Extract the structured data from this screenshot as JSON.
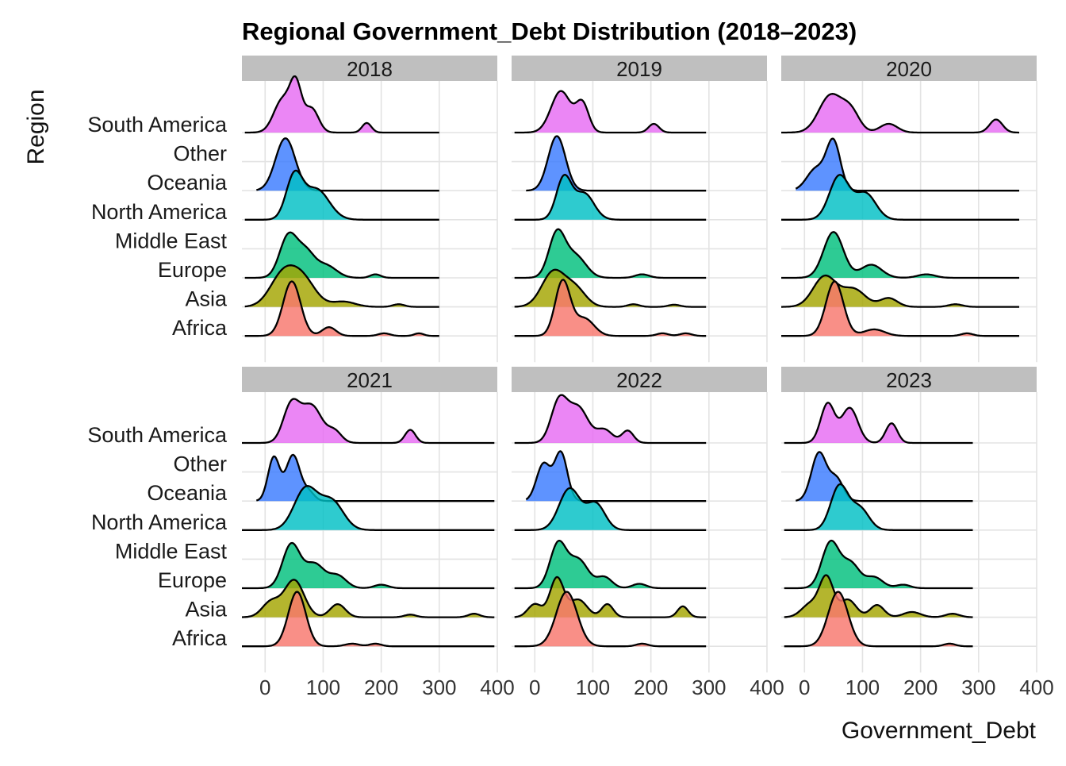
{
  "chart_data": {
    "type": "ridgeline",
    "title": "Regional Government_Debt Distribution (2018–2023)",
    "xlabel": "Government_Debt",
    "ylabel": "Region",
    "xlim": [
      -40,
      400
    ],
    "xticks": [
      0,
      100,
      200,
      300,
      400
    ],
    "grid": true,
    "legend": "none",
    "regions": [
      "South America",
      "Other",
      "Oceania",
      "North America",
      "Middle East",
      "Europe",
      "Asia",
      "Africa"
    ],
    "region_colors": {
      "Africa": "#F8766D",
      "Asia": "#A3A500",
      "Europe": "#00BF7D",
      "Middle East": "#00B0F6",
      "North America": "#00BFC4",
      "Oceania": "#3A7BFF",
      "Other": "#3A7BFF",
      "South America": "#E76BF3"
    },
    "facets": [
      {
        "year": "2018",
        "ridges": [
          {
            "region": "South America",
            "baseline": "South America",
            "range": [
              -35,
              300
            ],
            "peaks": [
              [
                30,
                0.75,
                15
              ],
              [
                53,
                1.0,
                10
              ],
              [
                80,
                0.55,
                12
              ],
              [
                175,
                0.22,
                8
              ]
            ]
          },
          {
            "region": "Other",
            "baseline": "Oceania",
            "range": [
              -15,
              300
            ],
            "peaks": [
              [
                35,
                1.2,
                17
              ]
            ]
          },
          {
            "region": "North America",
            "baseline": "North America",
            "range": [
              -35,
              300
            ],
            "peaks": [
              [
                50,
                0.95,
                14
              ],
              [
                88,
                0.7,
                22
              ]
            ]
          },
          {
            "region": "Europe",
            "baseline": "Europe",
            "range": [
              -35,
              300
            ],
            "peaks": [
              [
                40,
                0.95,
                15
              ],
              [
                70,
                0.55,
                15
              ],
              [
                105,
                0.28,
                18
              ],
              [
                190,
                0.08,
                9
              ]
            ]
          },
          {
            "region": "Asia",
            "baseline": "Asia",
            "range": [
              -35,
              300
            ],
            "peaks": [
              [
                30,
                0.7,
                22
              ],
              [
                65,
                0.6,
                22
              ],
              [
                135,
                0.12,
                20
              ],
              [
                230,
                0.06,
                10
              ]
            ]
          },
          {
            "region": "Africa",
            "baseline": "Africa",
            "range": [
              -35,
              300
            ],
            "peaks": [
              [
                46,
                1.25,
                15
              ],
              [
                110,
                0.2,
                12
              ],
              [
                205,
                0.06,
                10
              ],
              [
                265,
                0.06,
                8
              ]
            ]
          }
        ]
      },
      {
        "year": "2019",
        "ridges": [
          {
            "region": "South America",
            "baseline": "South America",
            "range": [
              -35,
              295
            ],
            "peaks": [
              [
                45,
                0.95,
                17
              ],
              [
                82,
                0.65,
                11
              ],
              [
                205,
                0.2,
                9
              ]
            ]
          },
          {
            "region": "Other",
            "baseline": "Oceania",
            "range": [
              -15,
              295
            ],
            "peaks": [
              [
                38,
                1.25,
                15
              ]
            ]
          },
          {
            "region": "North America",
            "baseline": "North America",
            "range": [
              -35,
              295
            ],
            "peaks": [
              [
                50,
                0.95,
                13
              ],
              [
                85,
                0.6,
                17
              ]
            ]
          },
          {
            "region": "Europe",
            "baseline": "Europe",
            "range": [
              -35,
              295
            ],
            "peaks": [
              [
                38,
                1.0,
                14
              ],
              [
                70,
                0.5,
                18
              ],
              [
                185,
                0.08,
                12
              ]
            ]
          },
          {
            "region": "Asia",
            "baseline": "Asia",
            "range": [
              -35,
              295
            ],
            "peaks": [
              [
                32,
                0.8,
                20
              ],
              [
                70,
                0.4,
                18
              ],
              [
                170,
                0.06,
                10
              ],
              [
                240,
                0.05,
                10
              ]
            ]
          },
          {
            "region": "Africa",
            "baseline": "Africa",
            "range": [
              -35,
              295
            ],
            "peaks": [
              [
                48,
                1.25,
                13
              ],
              [
                85,
                0.4,
                17
              ],
              [
                220,
                0.06,
                10
              ],
              [
                260,
                0.06,
                10
              ]
            ]
          }
        ]
      },
      {
        "year": "2020",
        "ridges": [
          {
            "region": "South America",
            "baseline": "South America",
            "range": [
              -40,
              370
            ],
            "peaks": [
              [
                45,
                0.85,
                20
              ],
              [
                80,
                0.45,
                15
              ],
              [
                145,
                0.2,
                15
              ],
              [
                330,
                0.3,
                11
              ]
            ]
          },
          {
            "region": "Other",
            "baseline": "Oceania",
            "range": [
              -15,
              370
            ],
            "peaks": [
              [
                20,
                0.5,
                16
              ],
              [
                50,
                1.1,
                12
              ]
            ]
          },
          {
            "region": "North America",
            "baseline": "North America",
            "range": [
              -40,
              370
            ],
            "peaks": [
              [
                60,
                1.0,
                17
              ],
              [
                105,
                0.6,
                18
              ]
            ]
          },
          {
            "region": "Europe",
            "baseline": "Europe",
            "range": [
              -40,
              370
            ],
            "peaks": [
              [
                50,
                1.05,
                17
              ],
              [
                115,
                0.3,
                18
              ],
              [
                210,
                0.08,
                15
              ]
            ]
          },
          {
            "region": "Asia",
            "baseline": "Asia",
            "range": [
              -40,
              370
            ],
            "peaks": [
              [
                35,
                0.7,
                20
              ],
              [
                85,
                0.4,
                20
              ],
              [
                145,
                0.2,
                15
              ],
              [
                260,
                0.06,
                12
              ]
            ]
          },
          {
            "region": "Africa",
            "baseline": "Africa",
            "range": [
              -40,
              370
            ],
            "peaks": [
              [
                52,
                1.25,
                15
              ],
              [
                120,
                0.15,
                18
              ],
              [
                280,
                0.06,
                10
              ]
            ]
          }
        ]
      },
      {
        "year": "2021",
        "ridges": [
          {
            "region": "South America",
            "baseline": "South America",
            "range": [
              -40,
              395
            ],
            "peaks": [
              [
                45,
                0.85,
                14
              ],
              [
                80,
                0.85,
                18
              ],
              [
                120,
                0.25,
                12
              ],
              [
                250,
                0.3,
                9
              ]
            ]
          },
          {
            "region": "Other",
            "baseline": "Oceania",
            "range": [
              -15,
              395
            ],
            "peaks": [
              [
                15,
                1.0,
                10
              ],
              [
                48,
                1.05,
                12
              ],
              [
                75,
                0.2,
                10
              ]
            ]
          },
          {
            "region": "North America",
            "baseline": "North America",
            "range": [
              -40,
              395
            ],
            "peaks": [
              [
                70,
                0.95,
                20
              ],
              [
                115,
                0.65,
                20
              ]
            ]
          },
          {
            "region": "Europe",
            "baseline": "Europe",
            "range": [
              -40,
              395
            ],
            "peaks": [
              [
                45,
                1.0,
                15
              ],
              [
                85,
                0.55,
                17
              ],
              [
                125,
                0.28,
                15
              ],
              [
                200,
                0.08,
                12
              ]
            ]
          },
          {
            "region": "Asia",
            "baseline": "Asia",
            "range": [
              -40,
              395
            ],
            "peaks": [
              [
                10,
                0.35,
                15
              ],
              [
                50,
                0.85,
                17
              ],
              [
                125,
                0.3,
                13
              ],
              [
                250,
                0.06,
                10
              ],
              [
                360,
                0.08,
                10
              ]
            ]
          },
          {
            "region": "Africa",
            "baseline": "Africa",
            "range": [
              -40,
              395
            ],
            "peaks": [
              [
                55,
                1.25,
                15
              ],
              [
                150,
                0.06,
                12
              ],
              [
                190,
                0.06,
                10
              ]
            ]
          }
        ]
      },
      {
        "year": "2022",
        "ridges": [
          {
            "region": "South America",
            "baseline": "South America",
            "range": [
              -35,
              295
            ],
            "peaks": [
              [
                42,
                0.95,
                14
              ],
              [
                75,
                0.8,
                17
              ],
              [
                120,
                0.3,
                14
              ],
              [
                160,
                0.28,
                10
              ]
            ]
          },
          {
            "region": "Other",
            "baseline": "Oceania",
            "range": [
              -15,
              295
            ],
            "peaks": [
              [
                15,
                0.85,
                12
              ],
              [
                45,
                1.1,
                11
              ]
            ]
          },
          {
            "region": "North America",
            "baseline": "North America",
            "range": [
              -35,
              295
            ],
            "peaks": [
              [
                60,
                0.95,
                18
              ],
              [
                105,
                0.6,
                16
              ]
            ]
          },
          {
            "region": "Europe",
            "baseline": "Europe",
            "range": [
              -35,
              295
            ],
            "peaks": [
              [
                40,
                1.0,
                14
              ],
              [
                75,
                0.65,
                17
              ],
              [
                120,
                0.25,
                13
              ],
              [
                180,
                0.1,
                12
              ]
            ]
          },
          {
            "region": "Asia",
            "baseline": "Asia",
            "range": [
              -35,
              295
            ],
            "peaks": [
              [
                0,
                0.3,
                12
              ],
              [
                38,
                0.9,
                12
              ],
              [
                75,
                0.4,
                15
              ],
              [
                125,
                0.3,
                10
              ],
              [
                255,
                0.25,
                9
              ]
            ]
          },
          {
            "region": "Africa",
            "baseline": "Africa",
            "range": [
              -35,
              295
            ],
            "peaks": [
              [
                55,
                1.25,
                18
              ],
              [
                185,
                0.06,
                10
              ]
            ]
          }
        ]
      },
      {
        "year": "2023",
        "ridges": [
          {
            "region": "South America",
            "baseline": "South America",
            "range": [
              -35,
              290
            ],
            "peaks": [
              [
                40,
                0.9,
                12
              ],
              [
                78,
                0.8,
                14
              ],
              [
                150,
                0.45,
                10
              ]
            ]
          },
          {
            "region": "Other",
            "baseline": "Oceania",
            "range": [
              -15,
              290
            ],
            "peaks": [
              [
                25,
                1.1,
                13
              ],
              [
                55,
                0.5,
                12
              ]
            ]
          },
          {
            "region": "North America",
            "baseline": "North America",
            "range": [
              -35,
              290
            ],
            "peaks": [
              [
                60,
                1.0,
                15
              ],
              [
                95,
                0.5,
                16
              ]
            ]
          },
          {
            "region": "Europe",
            "baseline": "Europe",
            "range": [
              -35,
              290
            ],
            "peaks": [
              [
                45,
                1.05,
                15
              ],
              [
                80,
                0.55,
                15
              ],
              [
                120,
                0.25,
                15
              ],
              [
                170,
                0.08,
                12
              ]
            ]
          },
          {
            "region": "Asia",
            "baseline": "Asia",
            "range": [
              -35,
              290
            ],
            "peaks": [
              [
                10,
                0.3,
                15
              ],
              [
                38,
                0.9,
                12
              ],
              [
                75,
                0.4,
                14
              ],
              [
                125,
                0.28,
                12
              ],
              [
                185,
                0.12,
                15
              ],
              [
                255,
                0.08,
                12
              ]
            ]
          },
          {
            "region": "Africa",
            "baseline": "Africa",
            "range": [
              -35,
              290
            ],
            "peaks": [
              [
                58,
                1.25,
                17
              ],
              [
                250,
                0.06,
                10
              ]
            ]
          }
        ]
      }
    ]
  }
}
